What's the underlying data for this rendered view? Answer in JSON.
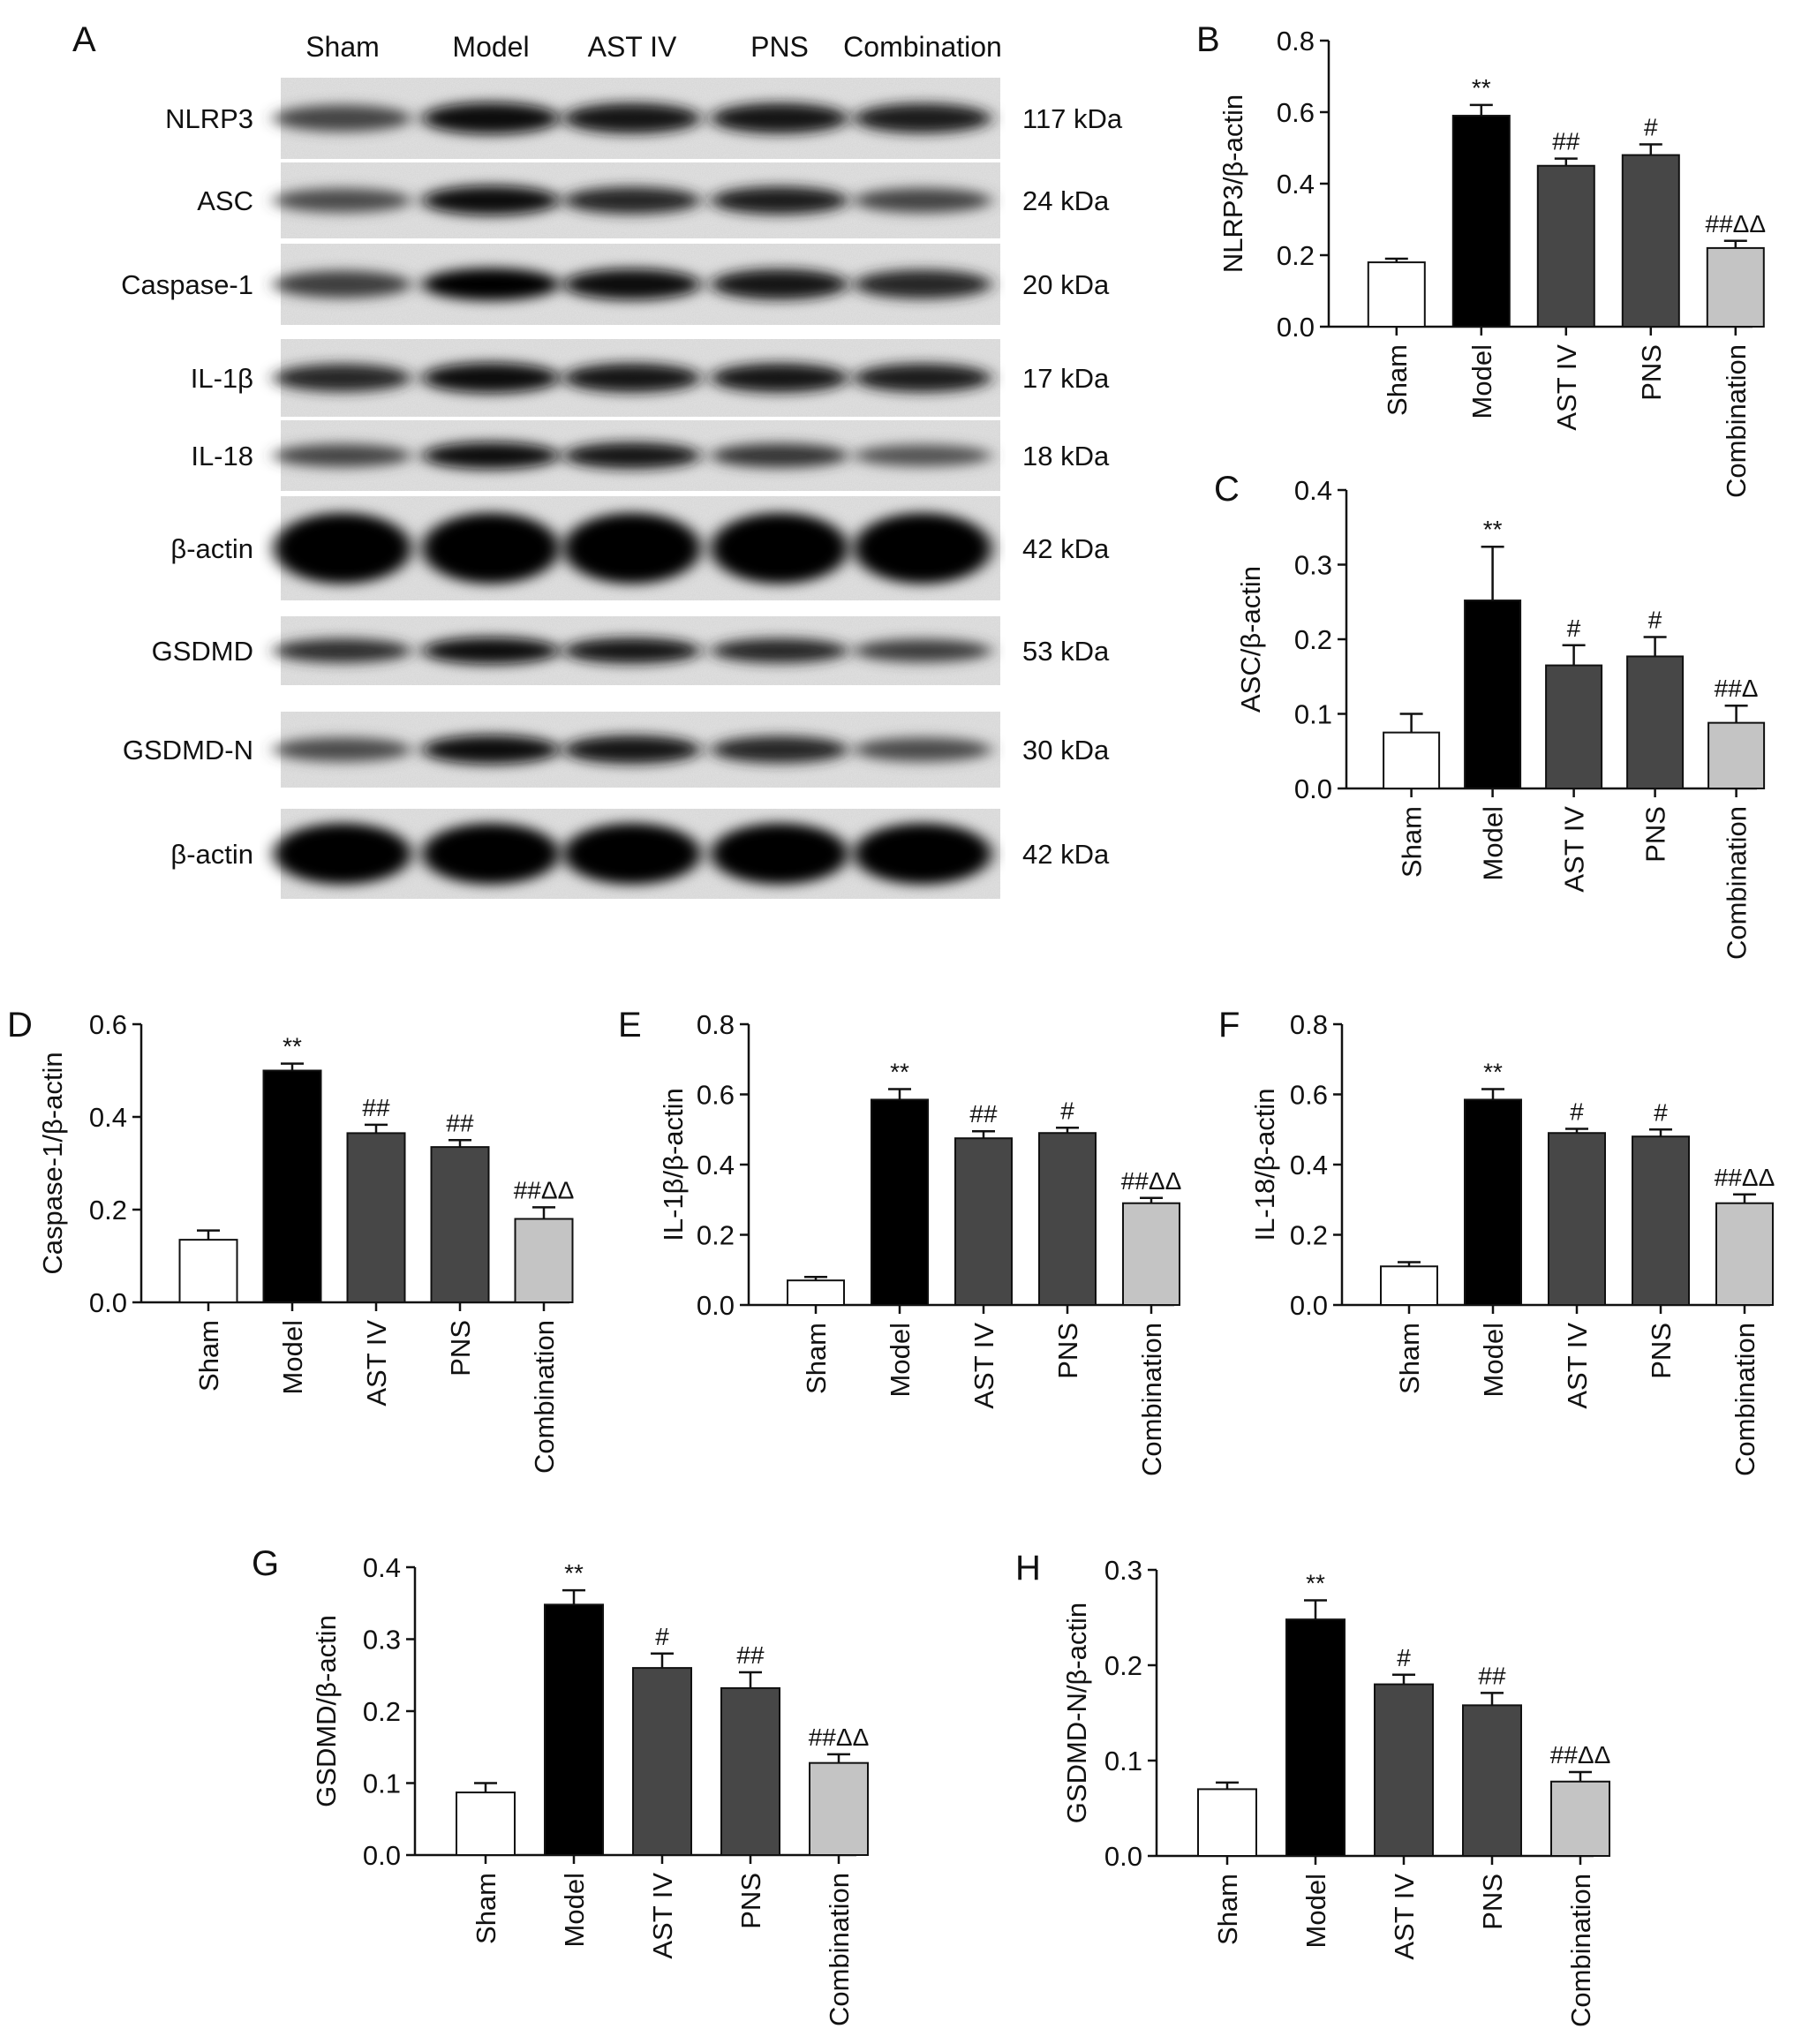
{
  "blot": {
    "panel_letter": "A",
    "lanes": [
      "Sham",
      "Model",
      "AST IV",
      "PNS",
      "Combination"
    ],
    "rows": [
      {
        "label": "NLRP3",
        "size": "117 kDa",
        "intensity": [
          0.55,
          0.95,
          0.85,
          0.85,
          0.8
        ]
      },
      {
        "label": "ASC",
        "size": "24 kDa",
        "intensity": [
          0.5,
          0.95,
          0.75,
          0.8,
          0.55
        ]
      },
      {
        "label": "Caspase-1",
        "size": "20 kDa",
        "intensity": [
          0.6,
          1.0,
          0.9,
          0.85,
          0.75
        ]
      },
      {
        "label": "IL-1β",
        "size": "17 kDa",
        "intensity": [
          0.75,
          0.95,
          0.85,
          0.85,
          0.8
        ]
      },
      {
        "label": "IL-18",
        "size": "18 kDa",
        "intensity": [
          0.55,
          0.9,
          0.85,
          0.65,
          0.45
        ]
      },
      {
        "label": "β-actin",
        "size": "42 kDa",
        "intensity": [
          1.0,
          1.0,
          1.0,
          1.0,
          1.0
        ]
      },
      {
        "label": "GSDMD",
        "size": "53 kDa",
        "intensity": [
          0.7,
          0.95,
          0.85,
          0.75,
          0.6
        ]
      },
      {
        "label": "GSDMD-N",
        "size": "30 kDa",
        "intensity": [
          0.5,
          0.9,
          0.85,
          0.75,
          0.5
        ]
      },
      {
        "label": "β-actin",
        "size": "42 kDa",
        "intensity": [
          1.0,
          1.0,
          1.0,
          1.0,
          1.0
        ]
      }
    ]
  },
  "colors": {
    "sham": "#ffffff",
    "model": "#000000",
    "treated": "#474747",
    "combination": "#c4c4c4",
    "axis": "#111111"
  },
  "chart_data": [
    {
      "panel": "B",
      "type": "bar",
      "title": "",
      "xlabel": "",
      "ylabel": "NLRP3/β-actin",
      "categories": [
        "Sham",
        "Model",
        "AST IV",
        "PNS",
        "Combination"
      ],
      "values": [
        0.18,
        0.59,
        0.45,
        0.48,
        0.22
      ],
      "errors": [
        0.01,
        0.03,
        0.02,
        0.03,
        0.02
      ],
      "annotations": [
        "",
        "**",
        "##",
        "#",
        "##ΔΔ"
      ],
      "ylim": [
        0,
        0.8
      ],
      "yticks": [
        "0.0",
        "0.2",
        "0.4",
        "0.6",
        "0.8"
      ]
    },
    {
      "panel": "C",
      "type": "bar",
      "title": "",
      "xlabel": "",
      "ylabel": "ASC/β-actin",
      "categories": [
        "Sham",
        "Model",
        "AST IV",
        "PNS",
        "Combination"
      ],
      "values": [
        0.075,
        0.252,
        0.165,
        0.177,
        0.088
      ],
      "errors": [
        0.025,
        0.072,
        0.027,
        0.026,
        0.023
      ],
      "annotations": [
        "",
        "**",
        "#",
        "#",
        "##Δ"
      ],
      "ylim": [
        0,
        0.4
      ],
      "yticks": [
        "0.0",
        "0.1",
        "0.2",
        "0.3",
        "0.4"
      ]
    },
    {
      "panel": "D",
      "type": "bar",
      "title": "",
      "xlabel": "",
      "ylabel": "Caspase-1/β-actin",
      "categories": [
        "Sham",
        "Model",
        "AST IV",
        "PNS",
        "Combination"
      ],
      "values": [
        0.135,
        0.5,
        0.365,
        0.335,
        0.18
      ],
      "errors": [
        0.02,
        0.015,
        0.018,
        0.015,
        0.025
      ],
      "annotations": [
        "",
        "**",
        "##",
        "##",
        "##ΔΔ"
      ],
      "ylim": [
        0,
        0.6
      ],
      "yticks": [
        "0.0",
        "0.2",
        "0.4",
        "0.6"
      ]
    },
    {
      "panel": "E",
      "type": "bar",
      "title": "",
      "xlabel": "",
      "ylabel": "IL-1β/β-actin",
      "categories": [
        "Sham",
        "Model",
        "AST IV",
        "PNS",
        "Combination"
      ],
      "values": [
        0.07,
        0.585,
        0.475,
        0.49,
        0.29
      ],
      "errors": [
        0.01,
        0.03,
        0.02,
        0.015,
        0.015
      ],
      "annotations": [
        "",
        "**",
        "##",
        "#",
        "##ΔΔ"
      ],
      "ylim": [
        0,
        0.8
      ],
      "yticks": [
        "0.0",
        "0.2",
        "0.4",
        "0.6",
        "0.8"
      ]
    },
    {
      "panel": "F",
      "type": "bar",
      "title": "",
      "xlabel": "",
      "ylabel": "IL-18/β-actin",
      "categories": [
        "Sham",
        "Model",
        "AST IV",
        "PNS",
        "Combination"
      ],
      "values": [
        0.11,
        0.585,
        0.49,
        0.48,
        0.29
      ],
      "errors": [
        0.012,
        0.03,
        0.012,
        0.02,
        0.025
      ],
      "annotations": [
        "",
        "**",
        "#",
        "#",
        "##ΔΔ"
      ],
      "ylim": [
        0,
        0.8
      ],
      "yticks": [
        "0.0",
        "0.2",
        "0.4",
        "0.6",
        "0.8"
      ]
    },
    {
      "panel": "G",
      "type": "bar",
      "title": "",
      "xlabel": "",
      "ylabel": "GSDMD/β-actin",
      "categories": [
        "Sham",
        "Model",
        "AST IV",
        "PNS",
        "Combination"
      ],
      "values": [
        0.087,
        0.348,
        0.26,
        0.232,
        0.128
      ],
      "errors": [
        0.013,
        0.02,
        0.02,
        0.022,
        0.012
      ],
      "annotations": [
        "",
        "**",
        "#",
        "##",
        "##ΔΔ"
      ],
      "ylim": [
        0,
        0.4
      ],
      "yticks": [
        "0.0",
        "0.1",
        "0.2",
        "0.3",
        "0.4"
      ]
    },
    {
      "panel": "H",
      "type": "bar",
      "title": "",
      "xlabel": "",
      "ylabel": "GSDMD-N/β-actin",
      "categories": [
        "Sham",
        "Model",
        "AST IV",
        "PNS",
        "Combination"
      ],
      "values": [
        0.07,
        0.248,
        0.18,
        0.158,
        0.078
      ],
      "errors": [
        0.007,
        0.02,
        0.01,
        0.013,
        0.01
      ],
      "annotations": [
        "",
        "**",
        "#",
        "##",
        "##ΔΔ"
      ],
      "ylim": [
        0,
        0.3
      ],
      "yticks": [
        "0.0",
        "0.1",
        "0.2",
        "0.3"
      ]
    }
  ]
}
